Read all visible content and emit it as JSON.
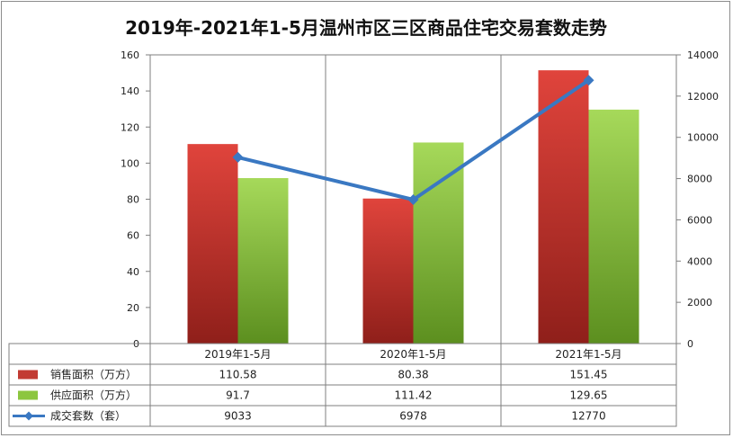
{
  "chart_data": {
    "type": "bar+line",
    "title": "2019年-2021年1-5月温州市区三区商品住宅交易套数走势",
    "categories": [
      "2019年1-5月",
      "2020年1-5月",
      "2021年1-5月"
    ],
    "y_left": {
      "ylim": [
        0,
        160
      ],
      "ticks": [
        "0",
        "20",
        "40",
        "60",
        "80",
        "100",
        "120",
        "140",
        "160"
      ]
    },
    "y_right": {
      "ylim": [
        0,
        14000
      ],
      "ticks": [
        "0",
        "2000",
        "4000",
        "6000",
        "8000",
        "10000",
        "12000",
        "14000"
      ]
    },
    "grid": "vertical",
    "series": [
      {
        "name": "销售面积（万方）",
        "kind": "bar",
        "axis": "left",
        "color": "#c0392b",
        "values": [
          110.58,
          80.38,
          151.45
        ],
        "labels": [
          "110.58",
          "80.38",
          "151.45"
        ]
      },
      {
        "name": "供应面积（万方）",
        "kind": "bar",
        "axis": "left",
        "color": "#8cc63f",
        "values": [
          91.7,
          111.42,
          129.65
        ],
        "labels": [
          "91.7",
          "111.42",
          "129.65"
        ]
      },
      {
        "name": "成交套数（套）",
        "kind": "line",
        "axis": "right",
        "color": "#3a78c2",
        "values": [
          9033,
          6978,
          12770
        ],
        "labels": [
          "9033",
          "6978",
          "12770"
        ]
      }
    ]
  }
}
